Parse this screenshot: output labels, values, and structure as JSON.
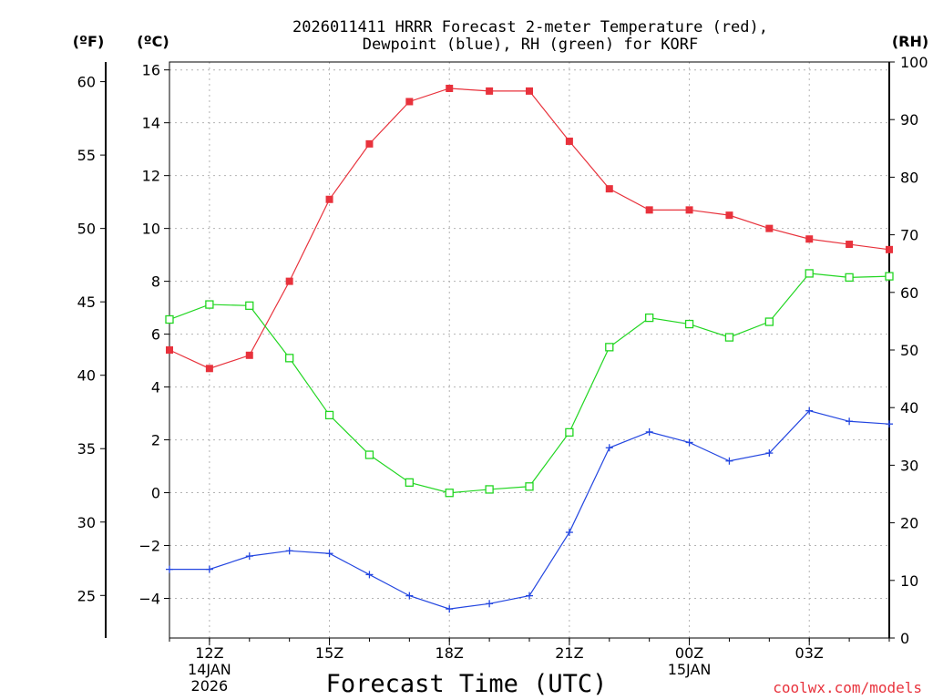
{
  "chart_data": {
    "type": "line",
    "title_lines": [
      "2026011411 HRRR Forecast 2-meter Temperature (red),",
      "Dewpoint (blue), RH (green) for KORF"
    ],
    "xlabel": "Forecast Time (UTC)",
    "unit_labels": {
      "fahrenheit": "(ºF)",
      "celsius": "(ºC)",
      "rh": "(RH)"
    },
    "credit": "coolwx.com/models",
    "x_hours": [
      11,
      12,
      13,
      14,
      15,
      16,
      17,
      18,
      19,
      20,
      21,
      22,
      23,
      24,
      25,
      26,
      27,
      28,
      29
    ],
    "xlim": [
      11,
      29
    ],
    "x_ticks": [
      {
        "x": 12,
        "lines": [
          "12Z",
          "14JAN",
          "2026"
        ]
      },
      {
        "x": 15,
        "lines": [
          "15Z"
        ]
      },
      {
        "x": 18,
        "lines": [
          "18Z"
        ]
      },
      {
        "x": 21,
        "lines": [
          "21Z"
        ]
      },
      {
        "x": 24,
        "lines": [
          "00Z",
          "15JAN"
        ]
      },
      {
        "x": 27,
        "lines": [
          "03Z"
        ]
      }
    ],
    "celsius_axis": {
      "ylim": [
        -5.5,
        16.3
      ],
      "ticks": [
        -4,
        -2,
        0,
        2,
        4,
        6,
        8,
        10,
        12,
        14,
        16
      ],
      "labels": [
        "−4",
        "−2",
        "0",
        "2",
        "4",
        "6",
        "8",
        "10",
        "12",
        "14",
        "16"
      ]
    },
    "fahrenheit_axis": {
      "ylim": [
        22.1,
        61.34
      ],
      "ticks": [
        25,
        30,
        35,
        40,
        45,
        50,
        55,
        60
      ],
      "labels": [
        "25",
        "30",
        "35",
        "40",
        "45",
        "50",
        "55",
        "60"
      ]
    },
    "rh_axis": {
      "ylim": [
        0,
        100
      ],
      "ticks": [
        0,
        10,
        20,
        30,
        40,
        50,
        60,
        70,
        80,
        90,
        100
      ],
      "labels": [
        "0",
        "10",
        "20",
        "30",
        "40",
        "50",
        "60",
        "70",
        "80",
        "90",
        "100"
      ]
    },
    "series": [
      {
        "name": "Temperature",
        "axis": "celsius",
        "color": "#e8323c",
        "marker": "filled-square",
        "values": [
          5.4,
          4.7,
          5.2,
          8.0,
          11.1,
          13.2,
          14.8,
          15.3,
          15.2,
          15.2,
          13.3,
          11.5,
          10.7,
          10.7,
          10.5,
          10.0,
          9.6,
          9.4,
          9.2
        ]
      },
      {
        "name": "Dewpoint",
        "axis": "celsius",
        "color": "#2346e0",
        "marker": "plus",
        "values": [
          -2.9,
          -2.9,
          -2.4,
          -2.2,
          -2.3,
          -3.1,
          -3.9,
          -4.4,
          -4.2,
          -3.9,
          -1.5,
          1.7,
          2.3,
          1.9,
          1.2,
          1.5,
          3.1,
          2.7,
          2.6
        ]
      },
      {
        "name": "RH",
        "axis": "rh",
        "color": "#22d622",
        "marker": "open-square",
        "values": [
          55.3,
          57.9,
          57.7,
          48.6,
          38.7,
          31.8,
          27.0,
          25.2,
          25.8,
          26.3,
          35.7,
          50.5,
          55.6,
          54.5,
          52.2,
          54.9,
          63.3,
          62.6,
          62.8
        ]
      }
    ]
  }
}
